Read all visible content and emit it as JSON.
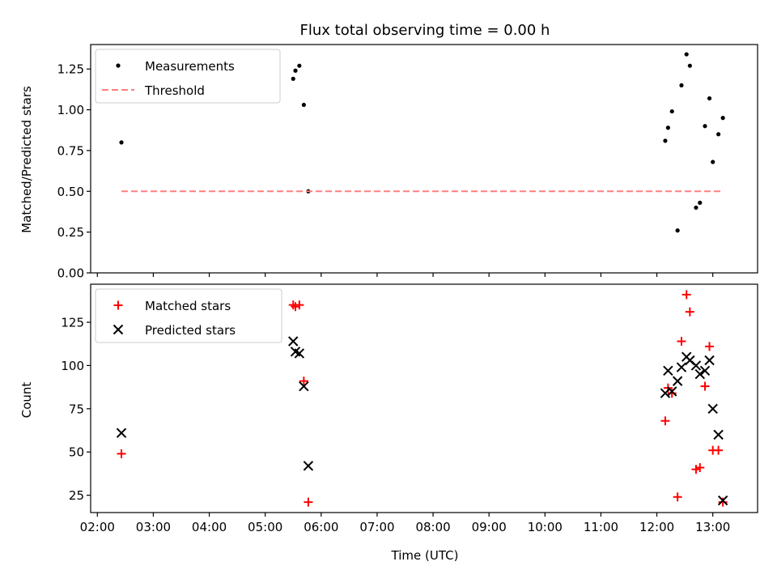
{
  "chart_data": [
    {
      "type": "scatter",
      "title": "Flux total observing time = 0.00 h",
      "ylabel": "Matched/Predicted stars",
      "xlabel": "",
      "xlim": [
        1.88,
        13.8
      ],
      "ylim": [
        0.0,
        1.4
      ],
      "yticks": [
        0.0,
        0.25,
        0.5,
        0.75,
        1.0,
        1.25
      ],
      "ytick_labels": [
        "0.00",
        "0.25",
        "0.50",
        "0.75",
        "1.00",
        "1.25"
      ],
      "xticks": [
        2,
        3,
        4,
        5,
        6,
        7,
        8,
        9,
        10,
        11,
        12,
        13
      ],
      "legend_position": "top-left",
      "series": [
        {
          "name": "Measurements",
          "marker": "dot",
          "color": "#000000",
          "x": [
            2.43,
            5.5,
            5.54,
            5.61,
            5.69,
            5.77,
            12.15,
            12.2,
            12.27,
            12.37,
            12.44,
            12.53,
            12.59,
            12.7,
            12.77,
            12.86,
            12.94,
            13.0,
            13.1,
            13.18
          ],
          "y": [
            0.8,
            1.19,
            1.24,
            1.27,
            1.03,
            0.5,
            0.81,
            0.89,
            0.99,
            0.26,
            1.15,
            1.34,
            1.27,
            0.4,
            0.43,
            0.9,
            1.07,
            0.68,
            0.85,
            0.95
          ]
        },
        {
          "name": "Threshold",
          "marker": "dashed-line",
          "color": "#ff7f7f",
          "x": [
            2.43,
            13.18
          ],
          "y": [
            0.5,
            0.5
          ]
        }
      ]
    },
    {
      "type": "scatter",
      "title": "",
      "ylabel": "Count",
      "xlabel": "Time (UTC)",
      "xlim": [
        1.88,
        13.8
      ],
      "ylim": [
        15,
        147
      ],
      "yticks": [
        25,
        50,
        75,
        100,
        125
      ],
      "ytick_labels": [
        "25",
        "50",
        "75",
        "100",
        "125"
      ],
      "xticks": [
        2,
        3,
        4,
        5,
        6,
        7,
        8,
        9,
        10,
        11,
        12,
        13
      ],
      "xtick_labels": [
        "02:00",
        "03:00",
        "04:00",
        "05:00",
        "06:00",
        "07:00",
        "08:00",
        "09:00",
        "10:00",
        "11:00",
        "12:00",
        "13:00"
      ],
      "legend_position": "top-left",
      "series": [
        {
          "name": "Matched stars",
          "marker": "plus",
          "color": "#ff0000",
          "x": [
            2.43,
            5.5,
            5.54,
            5.61,
            5.69,
            5.77,
            12.15,
            12.2,
            12.27,
            12.37,
            12.44,
            12.53,
            12.59,
            12.7,
            12.77,
            12.86,
            12.94,
            13.0,
            13.1,
            13.18
          ],
          "y": [
            49,
            135,
            134,
            135,
            91,
            21,
            68,
            87,
            84,
            24,
            114,
            141,
            131,
            40,
            41,
            88,
            111,
            51,
            51,
            21
          ]
        },
        {
          "name": "Predicted stars",
          "marker": "x",
          "color": "#000000",
          "x": [
            2.43,
            5.5,
            5.54,
            5.61,
            5.69,
            5.77,
            12.15,
            12.2,
            12.27,
            12.37,
            12.44,
            12.53,
            12.59,
            12.7,
            12.77,
            12.86,
            12.94,
            13.0,
            13.1,
            13.18
          ],
          "y": [
            61,
            114,
            108,
            107,
            88,
            42,
            84,
            97,
            85,
            91,
            99,
            105,
            103,
            100,
            95,
            97,
            103,
            75,
            60,
            22
          ]
        }
      ]
    }
  ]
}
